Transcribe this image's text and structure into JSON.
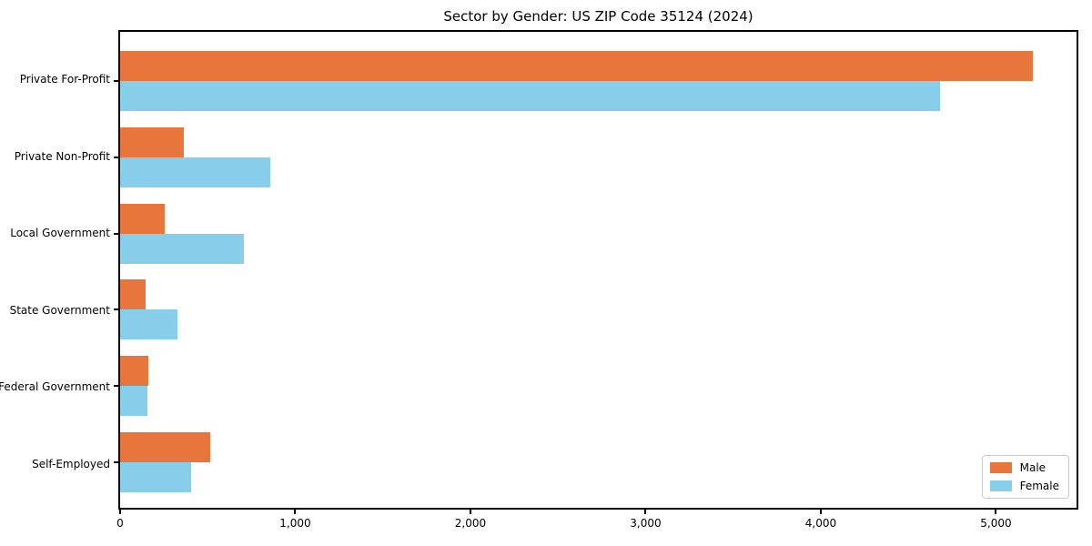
{
  "chart_data": {
    "type": "bar",
    "orientation": "horizontal",
    "title": "Sector by Gender: US ZIP Code 35124 (2024)",
    "categories": [
      "Private For-Profit",
      "Private Non-Profit",
      "Local Government",
      "State Government",
      "Federal Government",
      "Self-Employed"
    ],
    "series": [
      {
        "name": "Male",
        "color": "#e8763c",
        "values": [
          5210,
          365,
          255,
          145,
          160,
          515
        ]
      },
      {
        "name": "Female",
        "color": "#87ceeb",
        "values": [
          4680,
          855,
          705,
          325,
          155,
          405
        ]
      }
    ],
    "xlabel": "",
    "ylabel": "",
    "xlim": [
      0,
      5460
    ],
    "xticks": [
      0,
      1000,
      2000,
      3000,
      4000,
      5000
    ],
    "xtick_labels": [
      "0",
      "1,000",
      "2,000",
      "3,000",
      "4,000",
      "5,000"
    ],
    "grid": false,
    "legend_position": "lower right",
    "background_color": "#ffffff",
    "axis_color": "#000000"
  }
}
